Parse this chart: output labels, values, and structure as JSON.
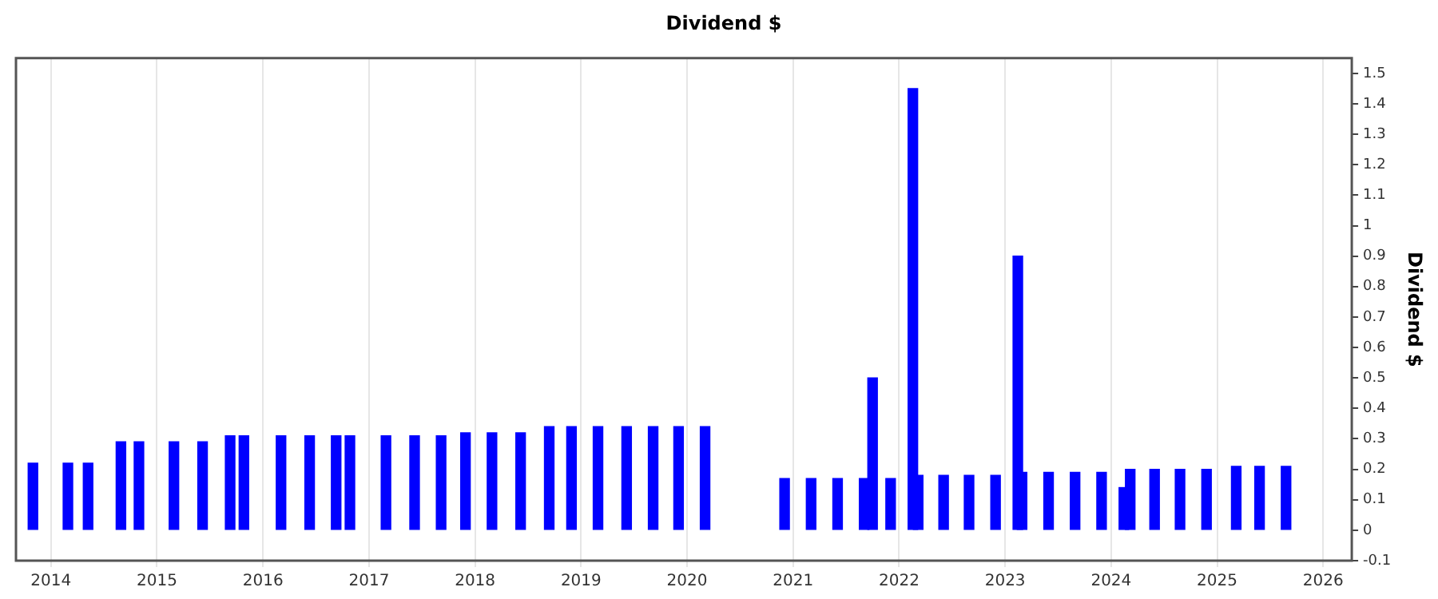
{
  "chart_data": {
    "type": "bar",
    "title": "Dividend $",
    "ylabel": "Dividend $",
    "x": [
      2013.83,
      2014.16,
      2014.35,
      2014.66,
      2014.83,
      2015.16,
      2015.43,
      2015.69,
      2015.82,
      2016.17,
      2016.44,
      2016.69,
      2016.82,
      2017.16,
      2017.43,
      2017.68,
      2017.91,
      2018.16,
      2018.43,
      2018.7,
      2018.91,
      2019.16,
      2019.43,
      2019.68,
      2019.92,
      2020.17,
      2020.92,
      2021.17,
      2021.42,
      2021.67,
      2021.75,
      2021.92,
      2022.13,
      2022.18,
      2022.42,
      2022.66,
      2022.91,
      2023.12,
      2023.16,
      2023.41,
      2023.66,
      2023.91,
      2024.12,
      2024.18,
      2024.41,
      2024.65,
      2024.9,
      2025.18,
      2025.4,
      2025.65
    ],
    "values": [
      0.22,
      0.22,
      0.22,
      0.29,
      0.29,
      0.29,
      0.29,
      0.31,
      0.31,
      0.31,
      0.31,
      0.31,
      0.31,
      0.31,
      0.31,
      0.31,
      0.32,
      0.32,
      0.32,
      0.34,
      0.34,
      0.34,
      0.34,
      0.34,
      0.34,
      0.34,
      0.17,
      0.17,
      0.17,
      0.17,
      0.5,
      0.17,
      1.45,
      0.18,
      0.18,
      0.18,
      0.18,
      0.9,
      0.19,
      0.19,
      0.19,
      0.19,
      0.14,
      0.2,
      0.2,
      0.2,
      0.2,
      0.21,
      0.21,
      0.21
    ],
    "color": "#0000ff",
    "xlim": [
      2013.67,
      2026.27
    ],
    "xticks": [
      2014,
      2015,
      2016,
      2017,
      2018,
      2019,
      2020,
      2021,
      2022,
      2023,
      2024,
      2025,
      2026
    ],
    "ylim": [
      -0.1,
      1.55
    ],
    "yticks": [
      -0.1,
      0,
      0.1,
      0.2,
      0.3,
      0.4,
      0.5,
      0.6,
      0.7,
      0.8,
      0.9,
      1,
      1.1,
      1.2,
      1.3,
      1.4,
      1.5
    ],
    "grid": "x",
    "legend": false
  }
}
